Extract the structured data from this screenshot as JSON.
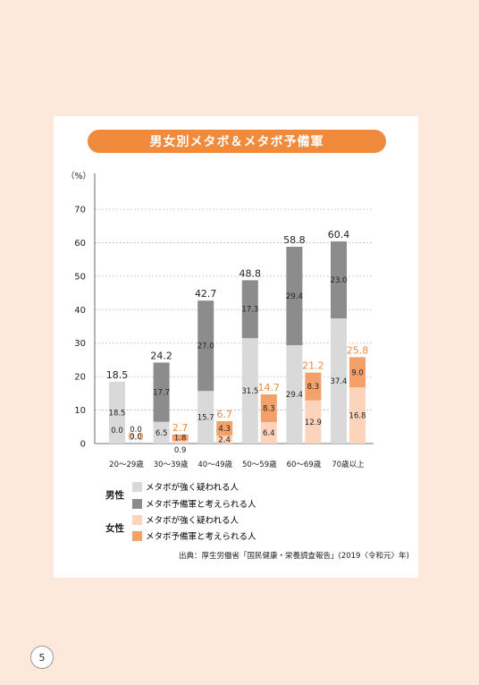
{
  "page": {
    "number": "5"
  },
  "title": "男女別メタボ＆メタボ予備軍",
  "chart_data": {
    "type": "bar",
    "stacked": true,
    "grouped_by_sex": true,
    "ylabel": "（%）",
    "ylim": [
      0,
      70
    ],
    "yticks": [
      0,
      10,
      20,
      30,
      40,
      50,
      60,
      70
    ],
    "grid": true,
    "categories": [
      "20～29歳",
      "30～39歳",
      "40～49歳",
      "50～59歳",
      "60～69歳",
      "70歳以上"
    ],
    "male": {
      "strong": [
        18.5,
        6.5,
        15.7,
        31.5,
        29.4,
        37.4
      ],
      "reserve": [
        0.0,
        17.7,
        27.0,
        17.3,
        29.4,
        23.0
      ],
      "total": [
        18.5,
        24.2,
        42.7,
        48.8,
        58.8,
        60.4
      ]
    },
    "female": {
      "strong": [
        0.0,
        0.9,
        2.4,
        6.4,
        12.9,
        16.8
      ],
      "reserve": [
        0.0,
        1.8,
        4.3,
        8.3,
        8.3,
        9.0
      ],
      "total": [
        0.0,
        2.7,
        6.7,
        14.7,
        21.2,
        25.8
      ]
    },
    "labels": {
      "male_strong": [
        "18.5",
        "6.5",
        "15.7",
        "31.5",
        "29.4",
        "37.4"
      ],
      "male_reserve": [
        "0.0",
        "17.7",
        "27.0",
        "17.3",
        "29.4",
        "23.0"
      ],
      "male_total": [
        "18.5",
        "24.2",
        "42.7",
        "48.8",
        "58.8",
        "60.4"
      ],
      "female_strong": [
        "0.0",
        "0.9",
        "2.4",
        "6.4",
        "12.9",
        "16.8"
      ],
      "female_reserve": [
        "0.0",
        "1.8",
        "4.3",
        "8.3",
        "8.3",
        "9.0"
      ],
      "female_total": [
        "0.0",
        "2.7",
        "6.7",
        "14.7",
        "21.2",
        "25.8"
      ]
    },
    "colors": {
      "male_strong": "#d9d9d9",
      "male_reserve": "#8c8c8c",
      "female_strong": "#fcd3bb",
      "female_reserve": "#f4a06a",
      "female_total_text": "#f08a3c"
    }
  },
  "legend": {
    "male_label": "男性",
    "female_label": "女性",
    "strong": "メタボが強く疑われる人",
    "reserve": "メタボ予備軍と考えられる人"
  },
  "source": "出典：厚生労働省「国民健康・栄養調査報告」(2019〈令和元〉年)"
}
